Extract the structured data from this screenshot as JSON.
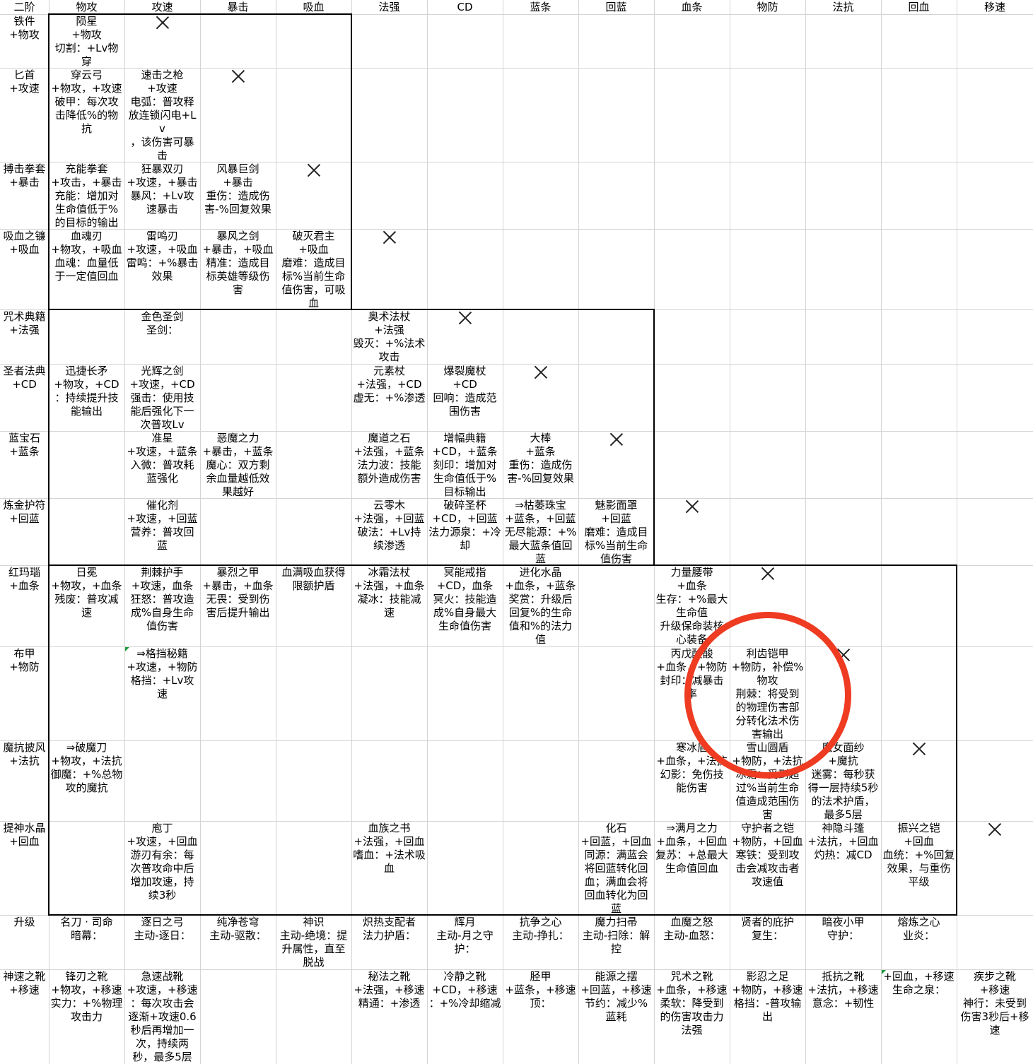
{
  "header": [
    "二阶",
    "物攻",
    "攻速",
    "暴击",
    "吸血",
    "法强",
    "CD",
    "蓝条",
    "回蓝",
    "血条",
    "物防",
    "法抗",
    "回血",
    "移速"
  ],
  "rows": [
    {
      "label": "铁件\n+物攻",
      "cells": [
        "陨星\n+物攻\n切割：+Lv物穿",
        "",
        "",
        "",
        "",
        "",
        "",
        "",
        "",
        "",
        "",
        "",
        ""
      ]
    },
    {
      "label": "匕首\n+攻速",
      "cells": [
        "穿云弓\n+物攻，+攻速\n破甲：每次攻击降低%的物抗",
        "速击之枪\n+攻速\n电弧：普攻释放连锁闪电+Lv\n，该伤害可暴击",
        "",
        "",
        "",
        "",
        "",
        "",
        "",
        "",
        "",
        "",
        ""
      ]
    },
    {
      "label": "搏击拳套\n+暴击",
      "cells": [
        "充能拳套\n+攻击，+暴击\n充能：增加对生命值低于%的目标的输出",
        "狂暴双刃\n+攻速，+暴击\n暴风：+Lv攻速暴击",
        "风暴巨剑\n+暴击\n重伤：造成伤害-%回复效果",
        "",
        "",
        "",
        "",
        "",
        "",
        "",
        "",
        "",
        ""
      ]
    },
    {
      "label": "吸血之镰\n+吸血",
      "cells": [
        "血魂刃\n+物攻，+吸血\n血魂：血量低于一定值回血",
        "雷鸣刃\n+攻速，+吸血\n雷鸣：+%暴击效果",
        "暴风之剑\n+暴击，+吸血\n精准：造成目标英雄等级伤害",
        "破灭君主\n+吸血\n磨难：造成目标%当前生命值伤害，可吸血",
        "",
        "",
        "",
        "",
        "",
        "",
        "",
        "",
        ""
      ]
    },
    {
      "label": "咒术典籍\n+法强",
      "cells": [
        "",
        "金色圣剑\n圣剑：",
        "",
        "",
        "奥术法杖\n+法强\n毁灭：+%法术攻击",
        "",
        "",
        "",
        "",
        "",
        "",
        "",
        ""
      ]
    },
    {
      "label": "圣者法典\n+CD",
      "cells": [
        "迅捷长矛\n+物攻，+CD\n：持续提升技能输出",
        "光辉之剑\n+攻速，+CD\n强击：使用技能后强化下一次普攻Lv",
        "",
        "",
        "元素杖\n+法强，+CD\n虚无：+%渗透",
        "爆裂魔杖\n+CD\n回响：造成范围伤害",
        "",
        "",
        "",
        "",
        "",
        "",
        ""
      ]
    },
    {
      "label": "蓝宝石\n+蓝条",
      "cells": [
        "",
        "准星\n+攻速，+蓝条\n入微：普攻耗蓝强化",
        "恶魔之力\n+暴击，+蓝条\n魔心：双方剩余血量越低效果越好",
        "",
        "魔道之石\n+法强，+蓝条\n法力波：技能额外造成伤害",
        "增幅典籍\n+CD，+蓝条\n刻印：增加对生命值低于%目标输出",
        "大棒\n+蓝条\n重伤：造成伤害-%回复效果",
        "",
        "",
        "",
        "",
        "",
        ""
      ]
    },
    {
      "label": "炼金护符\n+回蓝",
      "cells": [
        "",
        "催化剂\n+攻速，+回蓝\n营养：普攻回蓝",
        "",
        "",
        "云零木\n+法强，+回蓝\n破法：+Lv持续渗透",
        "破碎圣杯\n+CD，+回蓝\n法力源泉：+冷却",
        "⇒枯萎珠宝\n+蓝条，+回蓝\n无尽能源：+%最大蓝条值回蓝",
        "魅影面罩\n+回蓝\n磨难：造成目标%当前生命值伤害",
        "",
        "",
        "",
        "",
        ""
      ]
    },
    {
      "label": "红玛瑙\n+血条",
      "cells": [
        "日冕\n+物攻，+血条\n残废：普攻减速",
        "荆棘护手\n+攻速，血条\n狂怒：普攻造成%自身生命值伤害",
        "暴烈之甲\n+暴击，+血条\n无畏：受到伤害后提升输出",
        "血满吸血获得限额护盾",
        "冰霜法杖\n+法强，+血条\n凝冰：技能减速",
        "冥能戒指\n+CD，血条\n冥火：技能造成%自身最大生命值伤害",
        "进化水晶\n+血条，+蓝条\n奖赏：升级后回复%的生命值和%的法力值",
        "",
        "力量腰带\n+血条\n生存：+%最大生命值\n升级保命装核心装备",
        "",
        "",
        "",
        ""
      ]
    },
    {
      "label": "布甲\n+物防",
      "cells": [
        "",
        "⇒格挡秘籍\n+攻速，+物防\n格挡：+Lv攻速",
        "",
        "",
        "",
        "",
        "",
        "",
        "丙戊酸酸\n+血条，+物防\n封印：减暴击率",
        "利齿铠甲\n+物防，补偿%物攻\n荆棘：将受到的物理伤害部分转化法术伤害输出",
        "",
        "",
        ""
      ]
    },
    {
      "label": "魔抗披风\n+法抗",
      "cells": [
        "⇒破魔刀\n+物攻，+法抗\n御魔：+%总物攻的魔抗",
        "",
        "",
        "",
        "",
        "",
        "",
        "",
        "寒冰盾\n+血条，+法抗\n幻影：免伤技能伤害",
        "雪山圆盾\n+物防，+法抗\n冰霜：受到超过%当前生命值造成范围伤害",
        "魔女面纱\n+魔抗\n迷雾：每秒获得一层持续5秒的法术护盾，最多5层",
        "",
        ""
      ]
    },
    {
      "label": "提神水晶\n+回血",
      "cells": [
        "",
        "庖丁\n+攻速，+回血\n游刃有余：每次普攻命中后增加攻速，持续3秒",
        "",
        "",
        "血族之书\n+法强，+回血\n嗜血：+法术吸血",
        "",
        "",
        "化石\n+回蓝，+回血\n同源：满蓝会将回蓝转化回血；满血会将回血转化为回蓝",
        "⇒满月之力\n+血条，+回血\n复苏：+总最大生命值回血",
        "守护者之铠\n+物防，+回血\n寒铁：受到攻击会减攻击者攻速值",
        "神隐斗篷\n+法抗，+回血\n灼热：减CD",
        "振兴之铠\n+回血\n血统：+%回复效果，与重伤平级",
        ""
      ]
    },
    {
      "label": "升级",
      "cells": [
        "名刀 · 司命\n暗幕：",
        "逐日之弓\n主动-逐日：",
        "纯净苍穹\n主动-驱散：",
        "神识\n主动-绝境：提升属性，直至脱战",
        "炽热支配者\n法力护盾：",
        "辉月\n主动-月之守护：",
        "抗争之心\n主动-挣扎：",
        "魔力扫帚\n主动-扫除：解控",
        "血魔之怒\n主动-血怒：",
        "贤者的庇护\n复生：",
        "暗夜小甲\n守护：",
        "熔炼之心\n业炎：",
        ""
      ]
    },
    {
      "label": "神速之靴\n+移速",
      "cells": [
        "锋刃之靴\n+物攻，+移速\n实力：+%物理攻击力",
        "急速战靴\n+攻速，+移速\n：每次攻击会逐渐+攻速0.6秒后再增加一次，持续两秒，最多5层",
        "",
        "",
        "秘法之靴\n+法强，+移速\n精通：+渗透",
        "冷静之靴\n+CD，+移速\n：+%冷却缩减",
        "胫甲\n+蓝条，+移速\n顶：",
        "能源之摆\n+回蓝，+移速\n节约：减少%蓝耗",
        "咒术之靴\n+血条，+移速\n柔软：降受到的伤害攻击力法强",
        "影忍之足\n+物防，+移速\n格挡：-普攻输出",
        "抵抗之靴\n+法抗，+移速\n意念：+韧性",
        "+回血，+移速\n生命之泉：",
        "疾步之靴\n+移速\n神行：未受到伤害3秒后+移速"
      ]
    }
  ],
  "x_marks": [
    {
      "row": 0,
      "col": 2
    },
    {
      "row": 1,
      "col": 3
    },
    {
      "row": 2,
      "col": 4
    },
    {
      "row": 3,
      "col": 5
    },
    {
      "row": 4,
      "col": 6
    },
    {
      "row": 5,
      "col": 7
    },
    {
      "row": 6,
      "col": 8
    },
    {
      "row": 7,
      "col": 9
    },
    {
      "row": 8,
      "col": 10
    },
    {
      "row": 9,
      "col": 11
    },
    {
      "row": 10,
      "col": 12
    },
    {
      "row": 11,
      "col": 13
    }
  ],
  "highlight_color": "#ee3b22"
}
